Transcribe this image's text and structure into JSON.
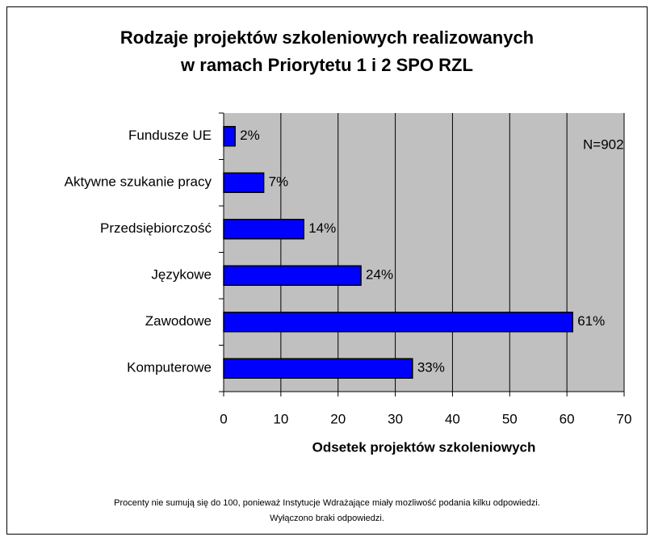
{
  "chart_data": {
    "type": "bar",
    "orientation": "horizontal",
    "title": [
      "Rodzaje projektów szkoleniowych realizowanych",
      "w ramach Priorytetu 1 i 2 SPO RZL"
    ],
    "categories": [
      "Fundusze UE",
      "Aktywne szukanie pracy",
      "Przedsiębiorczość",
      "Językowe",
      "Zawodowe",
      "Komputerowe"
    ],
    "values": [
      2,
      7,
      14,
      24,
      61,
      33
    ],
    "value_labels": [
      "2%",
      "7%",
      "14%",
      "24%",
      "61%",
      "33%"
    ],
    "color": "#0000ff",
    "xlim": [
      0,
      70
    ],
    "xticks": [
      0,
      10,
      20,
      30,
      40,
      50,
      60,
      70
    ],
    "grid": true,
    "xlabel": "Odsetek projektów szkoleniowych",
    "annotation": "N=902",
    "note": [
      "Procenty nie sumują się do 100, ponieważ Instytucje Wdrażające miały mozliwość podania kilku odpowiedzi.",
      "Wyłączono braki odpowiedzi."
    ]
  }
}
